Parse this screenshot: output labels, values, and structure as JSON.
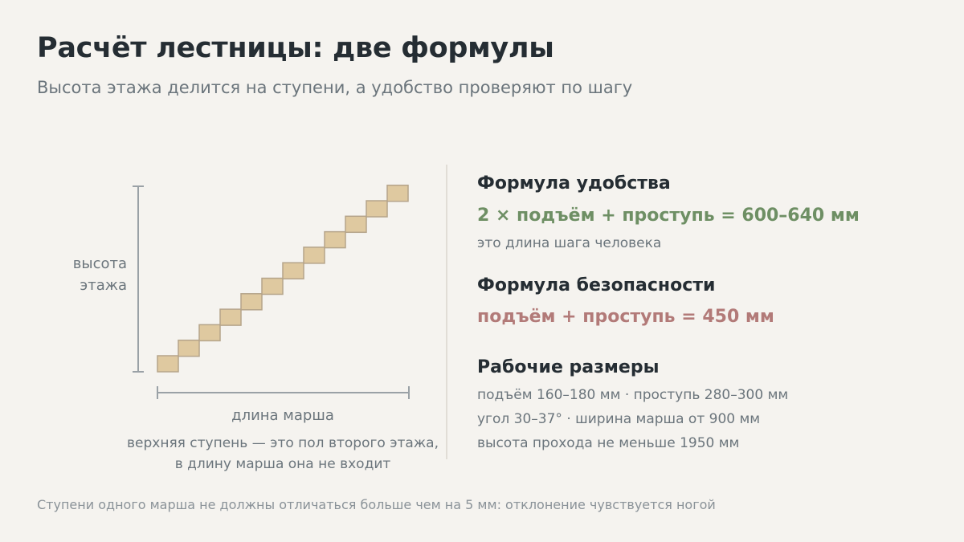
{
  "header": {
    "title": "Расчёт лестницы: две формулы",
    "subtitle": "Высота этажа делится на ступени, а удобство проверяют по шагу"
  },
  "diagram": {
    "height_label_line1": "высота",
    "height_label_line2": "этажа",
    "length_label": "длина марша",
    "note_line1": "верхняя ступень — это пол второго этажа,",
    "note_line2": "в длину марша она не входит",
    "step_count": 12,
    "colors": {
      "step_fill": "#dfc9a0",
      "step_stroke": "#b5a48a",
      "dimension_line": "#9aa1a6"
    }
  },
  "comfort": {
    "heading": "Формула удобства",
    "formula": "2 × подъём + проступь = 600–640 мм",
    "note": "это длина шага человека",
    "color": "#6e8f64"
  },
  "safety": {
    "heading": "Формула безопасности",
    "formula": "подъём + проступь = 450 мм",
    "color": "#b27a78"
  },
  "sizes": {
    "heading": "Рабочие размеры",
    "lines": [
      "подъём 160–180 мм · проступь 280–300 мм",
      "угол 30–37° · ширина марша от 900 мм",
      "высота прохода не меньше 1950 мм"
    ]
  },
  "footer": "Ступени одного марша не должны отличаться больше чем на 5 мм: отклонение чувствуется ногой"
}
